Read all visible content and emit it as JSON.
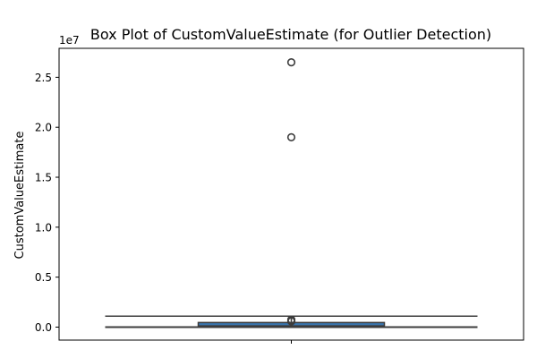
{
  "chart_data": {
    "type": "box",
    "title": "Box Plot of CustomValueEstimate (for Outlier Detection)",
    "xlabel": "",
    "ylabel": "CustomValueEstimate",
    "y_scale_label": "1e7",
    "ylim": [
      -1300000,
      27900000
    ],
    "yticks": [
      0,
      5000000,
      10000000,
      15000000,
      20000000,
      25000000
    ],
    "ytick_labels": [
      "0.0",
      "0.5",
      "1.0",
      "1.5",
      "2.0",
      "2.5"
    ],
    "grid": false,
    "box": {
      "whisker_low": 0,
      "q1": 20000,
      "median": 120000,
      "q3": 460000,
      "whisker_high": 1100000
    },
    "outliers": [
      26500000,
      19000000,
      750000,
      650000,
      580000
    ],
    "colors": {
      "box_fill": "#3a75ae",
      "line": "#3d3d3d",
      "axis": "#000000"
    }
  }
}
